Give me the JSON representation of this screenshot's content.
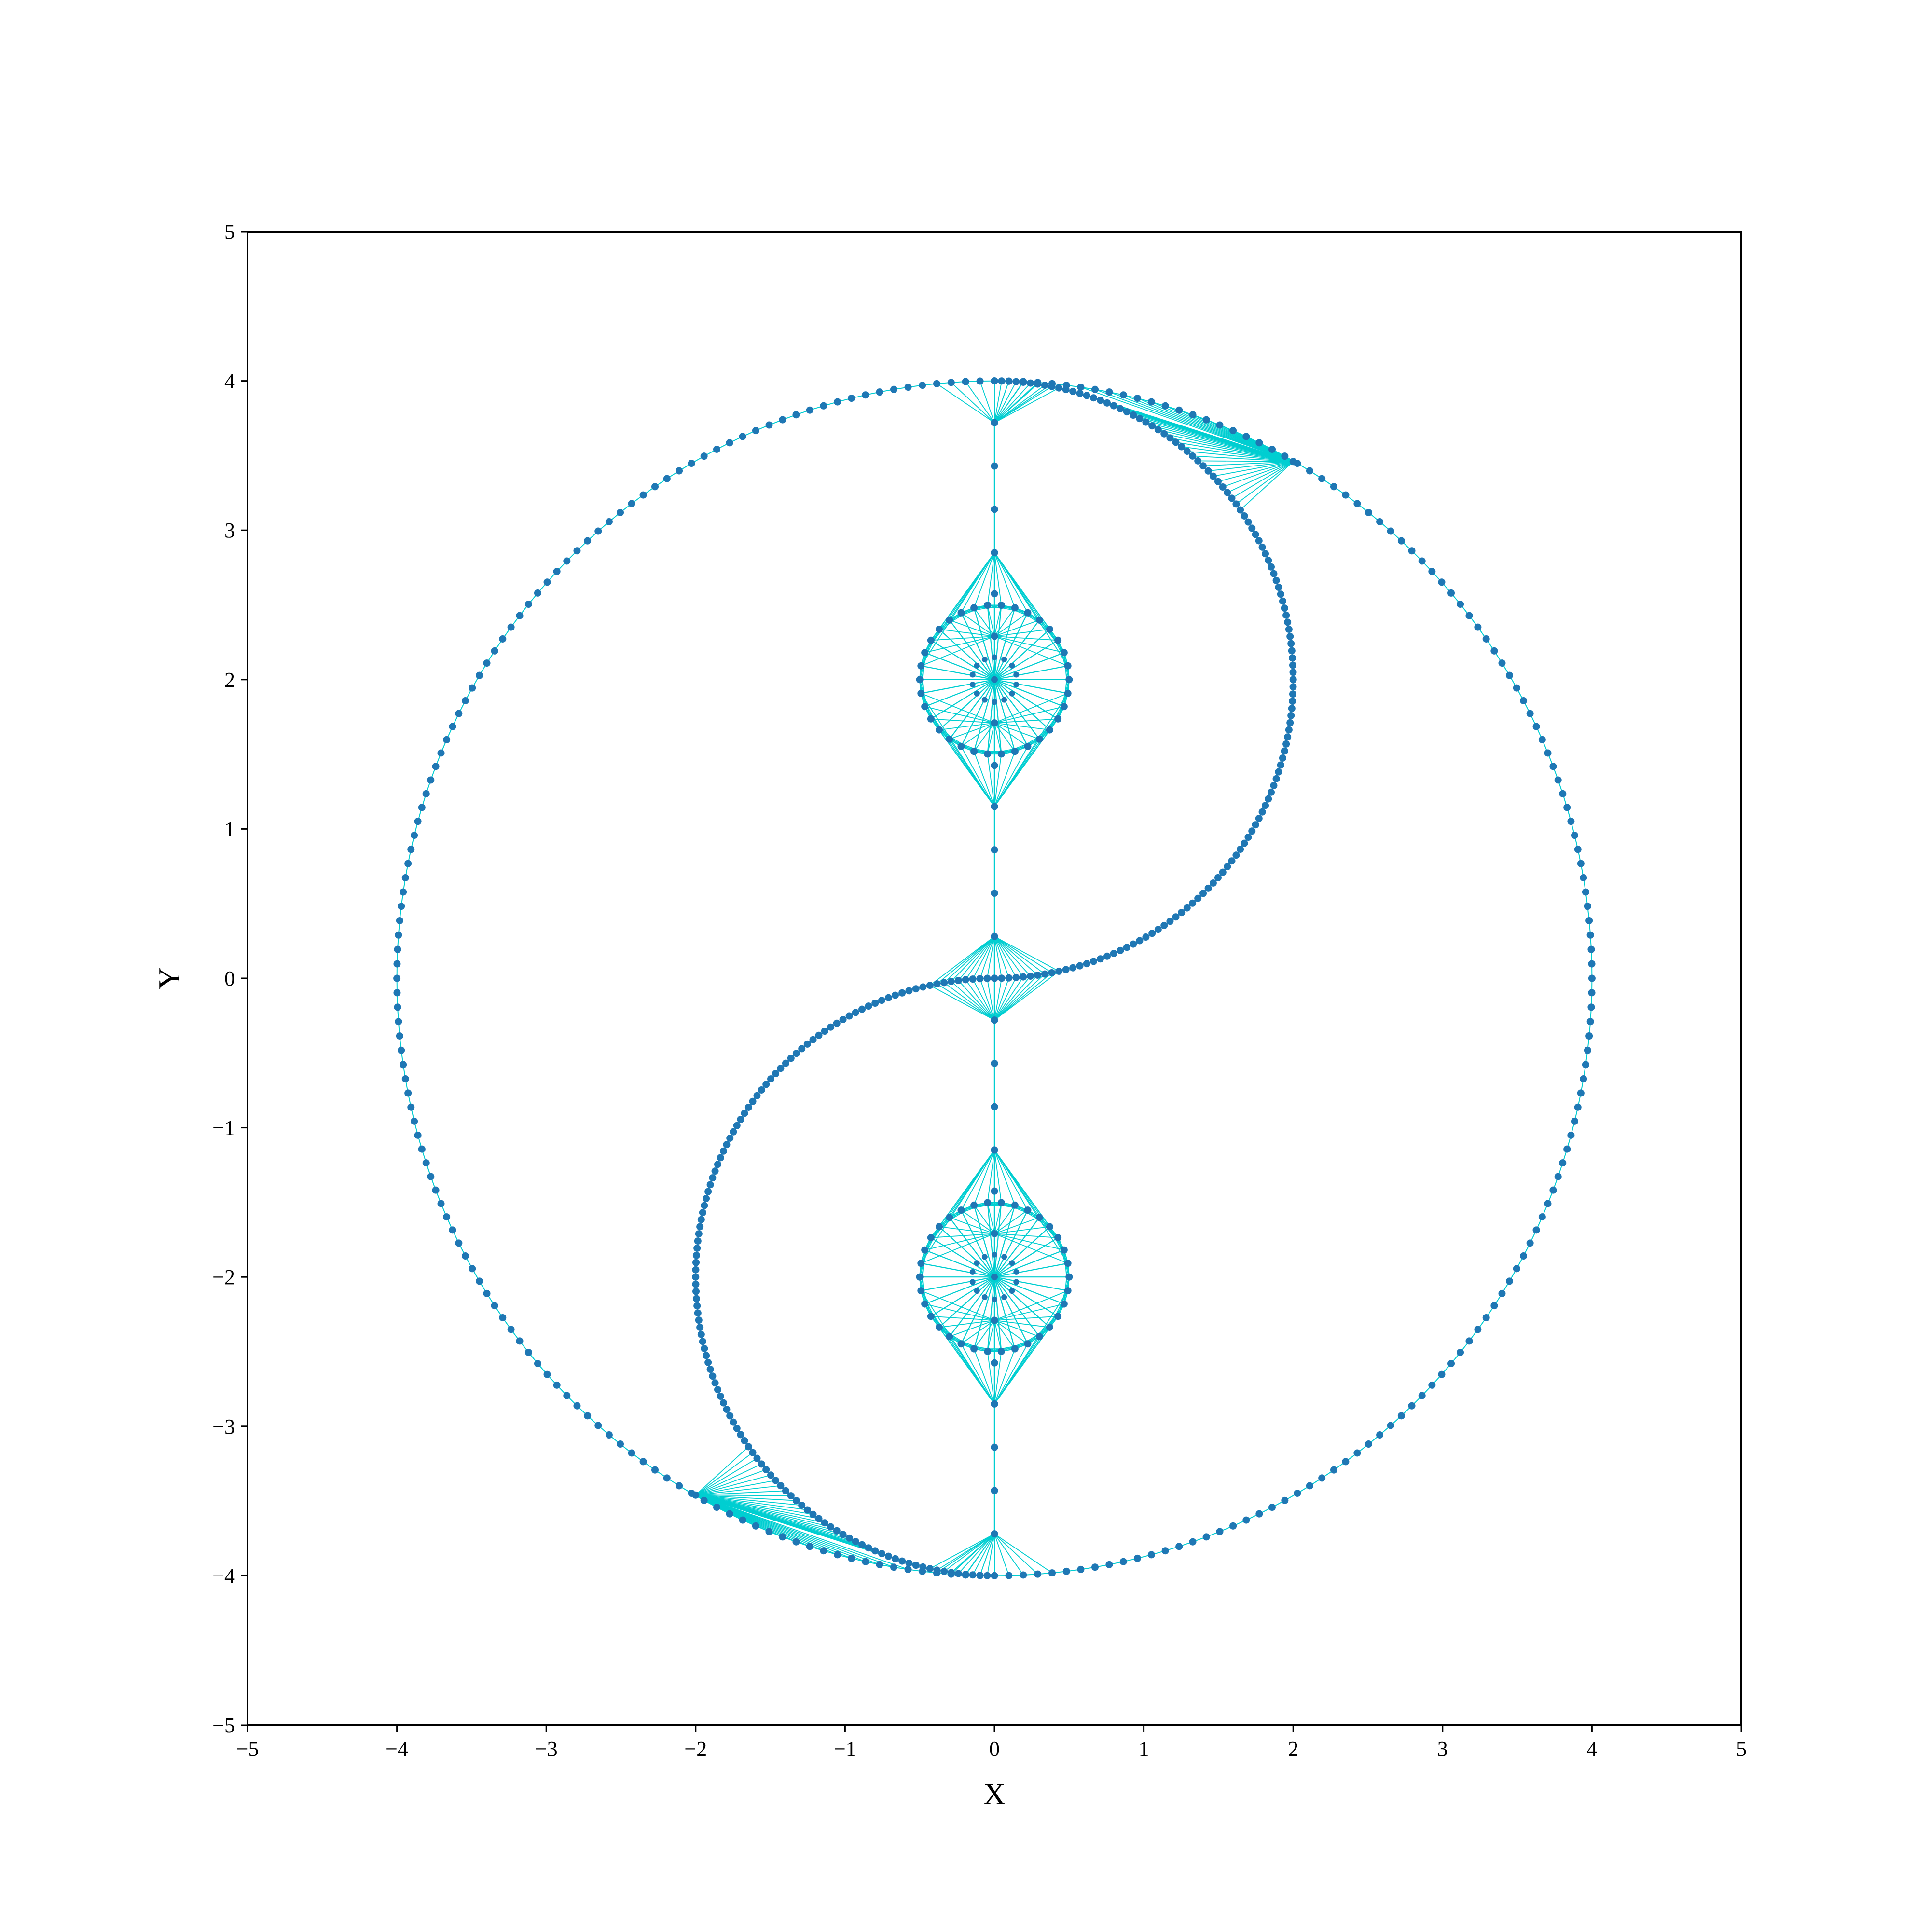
{
  "chart_data": {
    "type": "scatter",
    "title": "",
    "xlabel": "X",
    "ylabel": "Y",
    "xlim": [
      -5,
      5
    ],
    "ylim": [
      -5,
      5
    ],
    "xticks": [
      -5,
      -4,
      -3,
      -2,
      -1,
      0,
      1,
      2,
      3,
      4,
      5
    ],
    "yticks": [
      -5,
      -4,
      -3,
      -2,
      -1,
      0,
      1,
      2,
      3,
      4,
      5
    ],
    "tick_labels_x": [
      "−5",
      "−4",
      "−3",
      "−2",
      "−1",
      "0",
      "1",
      "2",
      "3",
      "4",
      "5"
    ],
    "tick_labels_y": [
      "−5",
      "−4",
      "−3",
      "−2",
      "−1",
      "0",
      "1",
      "2",
      "3",
      "4",
      "5"
    ],
    "grid": false,
    "legend": "none",
    "colors": {
      "point": "#1f77b4",
      "edge": "#00ced1",
      "axis": "#000000"
    },
    "shapes": {
      "outer_circle": {
        "center": [
          0,
          0
        ],
        "radius": 4
      },
      "upper_arc": {
        "center": [
          0,
          2
        ],
        "radius": 2,
        "side": "right"
      },
      "lower_arc": {
        "center": [
          0,
          -2
        ],
        "radius": 2,
        "side": "left"
      },
      "upper_eye": {
        "center": [
          0,
          2
        ],
        "radius": 0.5
      },
      "lower_eye": {
        "center": [
          0,
          -2
        ],
        "radius": 0.5
      },
      "center_line": {
        "x": 0,
        "y_range": [
          -3.72,
          3.72
        ]
      }
    },
    "hub_points": [
      {
        "x": 0,
        "y": 3.72
      },
      {
        "x": 0,
        "y": 2.85
      },
      {
        "x": 0,
        "y": 1.15
      },
      {
        "x": 0,
        "y": 0.28
      },
      {
        "x": 0,
        "y": -0.28
      },
      {
        "x": 0,
        "y": -1.15
      },
      {
        "x": 0,
        "y": -2.85
      },
      {
        "x": 0,
        "y": -3.72
      },
      {
        "x": 2.0,
        "y": 3.46
      },
      {
        "x": -2.0,
        "y": -3.46
      }
    ]
  }
}
